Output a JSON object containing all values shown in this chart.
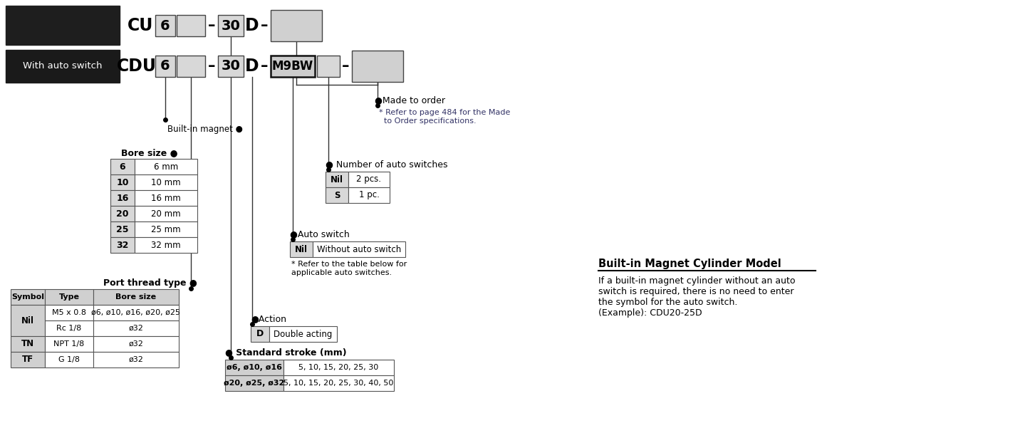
{
  "bg_color": "#ffffff",
  "with_auto_switch_label": "With auto switch",
  "built_in_magnet_label": "Built-in magnet ●",
  "bore_size_title": "Bore size ●",
  "bore_sizes": [
    [
      "6",
      "6 mm"
    ],
    [
      "10",
      "10 mm"
    ],
    [
      "16",
      "16 mm"
    ],
    [
      "20",
      "20 mm"
    ],
    [
      "25",
      "25 mm"
    ],
    [
      "32",
      "32 mm"
    ]
  ],
  "port_thread_title": "Port thread type ●",
  "port_thread_headers": [
    "Symbol",
    "Type",
    "Bore size"
  ],
  "port_thread_rows": [
    [
      "Nil",
      "M5 x 0.8",
      "ø6, ø10, ø16, ø20, ø25"
    ],
    [
      "",
      "Rc 1/8",
      "ø32"
    ],
    [
      "TN",
      "NPT 1/8",
      "ø32"
    ],
    [
      "TF",
      "G 1/8",
      "ø32"
    ]
  ],
  "action_title": "●Action",
  "action_row": [
    "D",
    "Double acting"
  ],
  "standard_stroke_title": "● Standard stroke (mm)",
  "standard_stroke_rows": [
    [
      "ø6, ø10, ø16",
      "5, 10, 15, 20, 25, 30"
    ],
    [
      "ø20, ø25, ø32",
      "5, 10, 15, 20, 25, 30, 40, 50"
    ]
  ],
  "auto_switch_title": "●Auto switch",
  "auto_switch_note": "* Refer to the table below for\napplicable auto switches.",
  "num_auto_title": "● Number of auto switches",
  "num_auto_rows": [
    [
      "Nil",
      "2 pcs."
    ],
    [
      "S",
      "1 pc."
    ]
  ],
  "made_to_order_title": "●Made to order",
  "made_to_order_note": "* Refer to page 484 for the Made\n  to Order specifications.",
  "built_in_title": "Built-in Magnet Cylinder Model",
  "built_in_text": "If a built-in magnet cylinder without an auto\nswitch is required, there is no need to enter\nthe symbol for the auto switch.\n(Example): CDU20-25D"
}
